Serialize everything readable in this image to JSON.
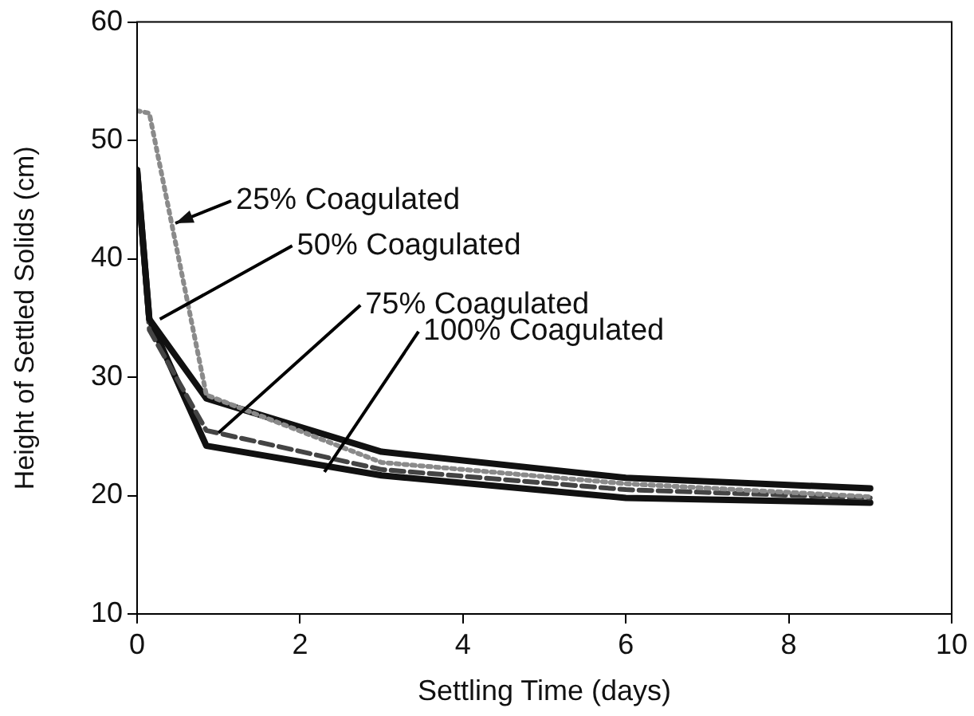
{
  "chart_data": {
    "type": "line",
    "xlabel": "Settling Time (days)",
    "ylabel": "Height of Settled Solids (cm)",
    "x": [
      0,
      0.15,
      0.85,
      3,
      6,
      9
    ],
    "series": [
      {
        "color": "#8a8a8a",
        "line_style": "dotted",
        "values": [
          52.5,
          52.3,
          28.5,
          22.8,
          21,
          19.9
        ]
      },
      {
        "color": "#111111",
        "line_style": "solid",
        "values": [
          47.5,
          34.9,
          28.2,
          23.7,
          21.5,
          20.6
        ]
      },
      {
        "color": "#444444",
        "line_style": "dashed",
        "values": [
          47,
          34,
          25.5,
          22.2,
          20.5,
          19.8
        ]
      },
      {
        "color": "#111111",
        "line_style": "solid",
        "values": [
          47.5,
          34.9,
          24.2,
          21.7,
          19.8,
          19.4
        ]
      }
    ],
    "annotations": [
      {
        "text": "25% Coagulated",
        "x": 0.47,
        "y": 43
      },
      {
        "text": "50% Coagulated",
        "x": 0.28,
        "y": 34.9
      },
      {
        "text": "75% Coagulated",
        "x": 1,
        "y": 25.3
      },
      {
        "text": "100% Coagulated",
        "x": 2.3,
        "y": 22
      }
    ],
    "xlim": [
      0,
      10
    ],
    "xticks": [
      0,
      2,
      4,
      6,
      8,
      10
    ],
    "ylim": [
      10,
      60
    ],
    "yticks": [
      10,
      20,
      30,
      40,
      50,
      60
    ],
    "grid": false,
    "legend": false,
    "marker": "none"
  }
}
